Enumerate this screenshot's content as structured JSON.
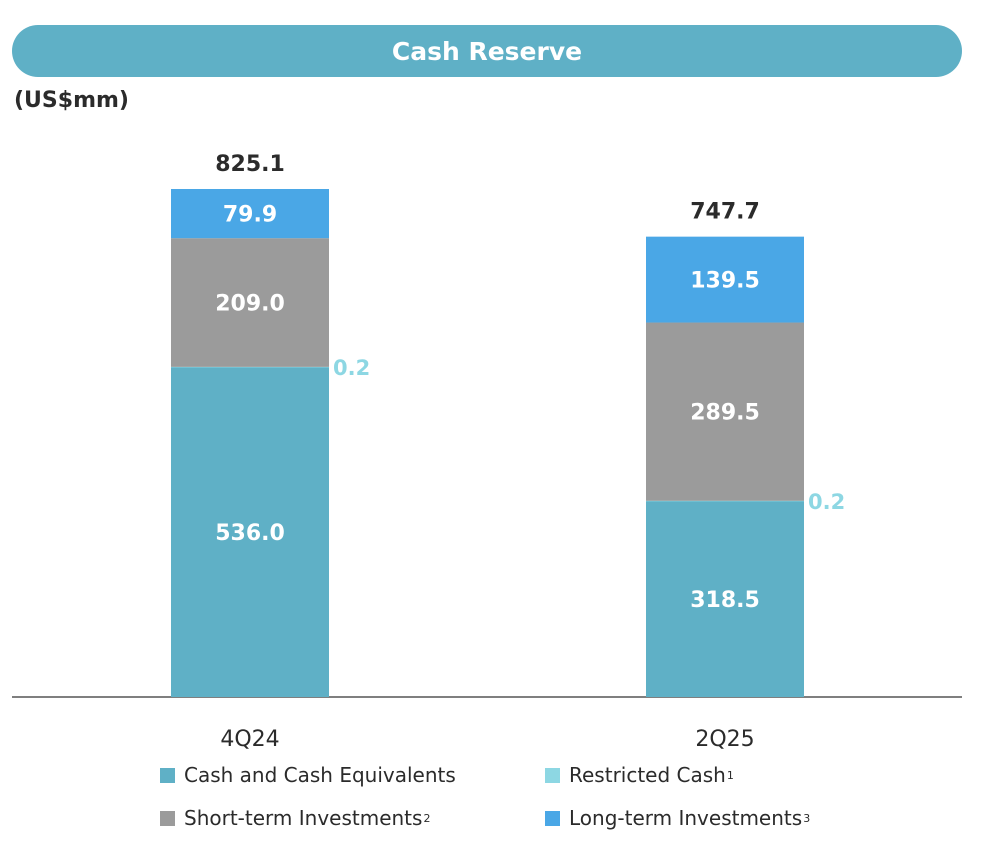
{
  "banner": {
    "title": "Cash Reserve"
  },
  "unit_label": "(US$mm)",
  "colors": {
    "cash": "#5fb0c6",
    "restricted": "#8dd7e3",
    "short_term": "#9b9b9b",
    "long_term": "#4aa7e6",
    "banner": "#5fb0c6",
    "text_dark": "#2b2b2b"
  },
  "chart_data": {
    "type": "bar",
    "stacked": true,
    "title": "Cash Reserve",
    "ylabel": "(US$mm)",
    "categories": [
      "4Q24",
      "2Q25"
    ],
    "totals": [
      "825.1",
      "747.7"
    ],
    "ylim": [
      0,
      825.1
    ],
    "series": [
      {
        "name": "Cash and Cash Equivalents",
        "key": "cash",
        "values": [
          536.0,
          318.5
        ],
        "labels": [
          "536.0",
          "318.5"
        ],
        "color": "#5fb0c6"
      },
      {
        "name": "Restricted Cash",
        "key": "restricted",
        "values": [
          0.2,
          0.2
        ],
        "labels": [
          "0.2",
          "0.2"
        ],
        "color": "#8dd7e3"
      },
      {
        "name": "Short-term Investments",
        "key": "short_term",
        "values": [
          209.0,
          289.5
        ],
        "labels": [
          "209.0",
          "289.5"
        ],
        "color": "#9b9b9b"
      },
      {
        "name": "Long-term Investments",
        "key": "long_term",
        "values": [
          79.9,
          139.5
        ],
        "labels": [
          "79.9",
          "139.5"
        ],
        "color": "#4aa7e6"
      }
    ]
  },
  "legend": [
    {
      "label": "Cash and Cash Equivalents",
      "sup": "",
      "color": "#5fb0c6"
    },
    {
      "label": "Restricted Cash",
      "sup": "1",
      "color": "#8dd7e3"
    },
    {
      "label": "Short-term Investments",
      "sup": "2",
      "color": "#9b9b9b"
    },
    {
      "label": "Long-term Investments",
      "sup": "3",
      "color": "#4aa7e6"
    }
  ]
}
